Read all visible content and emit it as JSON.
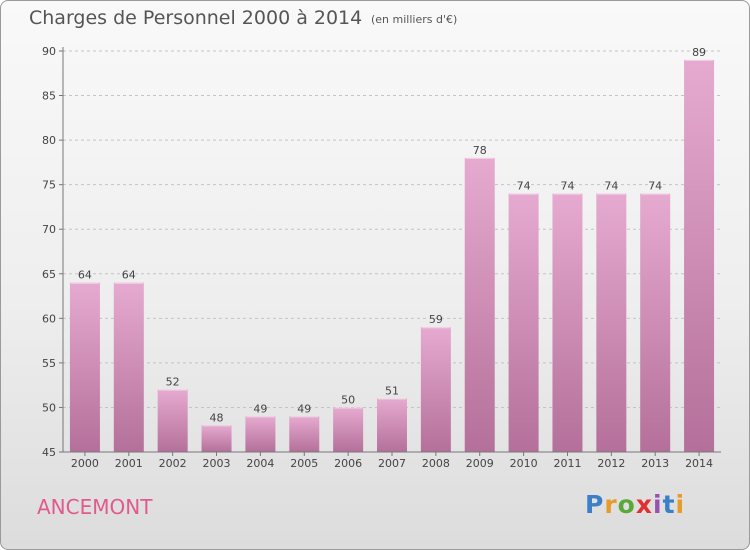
{
  "title": "Charges de Personnel 2000 à 2014",
  "subtitle": "(en milliers d'€)",
  "commune": "ANCEMONT",
  "logo": {
    "letters": [
      "P",
      "r",
      "o",
      "x",
      "i",
      "t",
      "i"
    ],
    "colors": [
      "#3a7fc8",
      "#e89a2a",
      "#5aa83a",
      "#e03030",
      "#9a50b0",
      "#3a7fc8",
      "#e89a2a"
    ]
  },
  "colors": {
    "bar_top": "#e6aad0",
    "bar_bottom": "#b4709a",
    "commune": "#e05a8d"
  },
  "chart_data": {
    "type": "bar",
    "title": "Charges de Personnel 2000 à 2014",
    "subtitle": "(en milliers d'€)",
    "categories": [
      "2000",
      "2001",
      "2002",
      "2003",
      "2004",
      "2005",
      "2006",
      "2007",
      "2008",
      "2009",
      "2010",
      "2011",
      "2012",
      "2013",
      "2014"
    ],
    "values": [
      64,
      64,
      52,
      48,
      49,
      49,
      50,
      51,
      59,
      78,
      74,
      74,
      74,
      74,
      89
    ],
    "ylim": [
      45,
      90
    ],
    "yticks": [
      45,
      50,
      55,
      60,
      65,
      70,
      75,
      80,
      85,
      90
    ],
    "grid": "horizontal dashed",
    "data_labels": true
  }
}
